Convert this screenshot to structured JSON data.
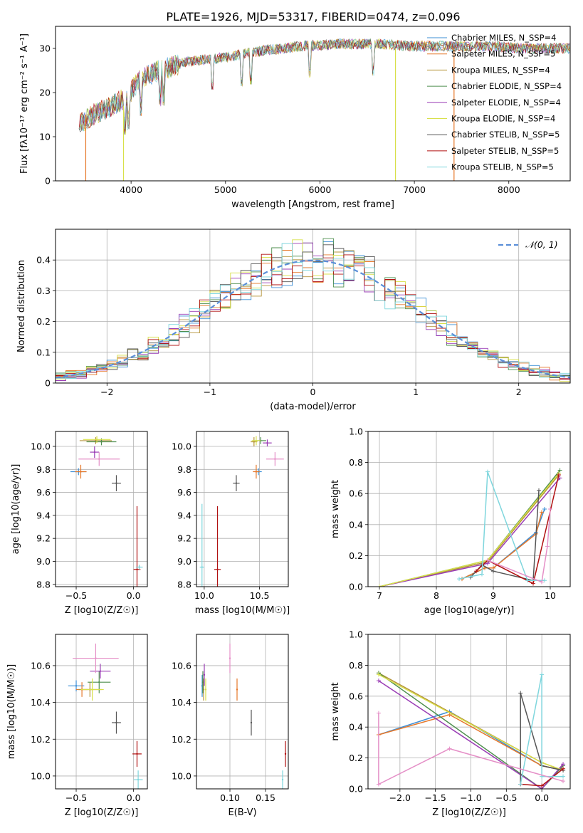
{
  "figure": {
    "title": "PLATE=1926, MJD=53317, FIBERID=0474, z=0.096"
  },
  "colors": {
    "models": [
      "#3d8fd6",
      "#e6782a",
      "#b5943a",
      "#4f8f4f",
      "#9a3db5",
      "#d8e04a",
      "#555555",
      "#b01010",
      "#7fd6dd"
    ],
    "extra": [
      "#e58fc7"
    ],
    "grid": "#b0b0b0",
    "gauss": "#5b8fd8"
  },
  "chart_data": [
    {
      "id": "spectrum",
      "type": "line",
      "xlabel": "wavelength [Angstrom, rest frame]",
      "ylabel": "Flux [fλ10⁻¹⁷ erg cm⁻² s⁻¹ A⁻¹]",
      "xlim": [
        3200,
        8650
      ],
      "ylim": [
        0,
        35
      ],
      "xticks": [
        4000,
        5000,
        6000,
        7000,
        8000
      ],
      "yticks": [
        0,
        10,
        20,
        30
      ],
      "grid": false,
      "legend_position": "upper-right",
      "legend": [
        "Chabrier MILES, N_SSP=4",
        "Salpeter MILES, N_SSP=5",
        "Kroupa MILES, N_SSP=4",
        "Chabrier ELODIE, N_SSP=4",
        "Salpeter ELODIE, N_SSP=4",
        "Kroupa ELODIE, N_SSP=4",
        "Chabrier STELIB, N_SSP=5",
        "Salpeter STELIB, N_SSP=5",
        "Kroupa STELIB, N_SSP=5"
      ],
      "continuum": {
        "x": [
          3450,
          3600,
          3800,
          3950,
          4100,
          4300,
          4600,
          5000,
          5400,
          5800,
          6200,
          6600,
          7000,
          7400,
          7800,
          8200,
          8600
        ],
        "y": [
          13,
          15,
          17,
          19,
          23,
          25,
          27,
          28,
          29.5,
          30.5,
          31,
          31,
          30.5,
          30.5,
          30.5,
          30,
          30
        ]
      },
      "dropouts": [
        {
          "x": 3520,
          "y0": 0,
          "y1": 15
        },
        {
          "x": 3920,
          "y0": 0,
          "y1": 17
        },
        {
          "x": 6800,
          "y0": 0,
          "y1": 30
        },
        {
          "x": 7420,
          "y0": 0,
          "y1": 30
        }
      ]
    },
    {
      "id": "residuals",
      "type": "step",
      "xlabel": "(data-model)/error",
      "ylabel": "Normed distribution",
      "xlim": [
        -2.5,
        2.5
      ],
      "ylim": [
        0,
        0.5
      ],
      "xticks": [
        -2,
        -1,
        0,
        1,
        2
      ],
      "yticks": [
        0,
        0.1,
        0.2,
        0.3,
        0.4
      ],
      "grid": true,
      "legend_position": "upper-right",
      "legend": [
        "𝒩(0, 1)"
      ],
      "bin_width": 0.1,
      "gaussian": {
        "mean": 0,
        "sigma": 1
      }
    },
    {
      "id": "age_vs_Z",
      "type": "errorbar",
      "xlabel": "Z [log10(Z/Z☉)]",
      "ylabel": "age  [log10(age/yr)]",
      "xlim": [
        -0.68,
        0.12
      ],
      "ylim": [
        8.78,
        10.13
      ],
      "xticks": [
        -0.5,
        0.0
      ],
      "yticks": [
        8.8,
        9.0,
        9.2,
        9.4,
        9.6,
        9.8,
        10.0
      ],
      "grid": true,
      "points": [
        {
          "x": -0.48,
          "y": 9.78,
          "xerr": 0.07,
          "yerr": 0.03
        },
        {
          "x": -0.46,
          "y": 9.78,
          "xerr": 0.05,
          "yerr": 0.06
        },
        {
          "x": -0.33,
          "y": 10.05,
          "xerr": 0.14,
          "yerr": 0.03
        },
        {
          "x": -0.28,
          "y": 10.04,
          "xerr": 0.13,
          "yerr": 0.03
        },
        {
          "x": -0.34,
          "y": 9.95,
          "xerr": 0.04,
          "yerr": 0.05
        },
        {
          "x": -0.32,
          "y": 10.06,
          "xerr": 0.12,
          "yerr": 0.03
        },
        {
          "x": -0.15,
          "y": 9.68,
          "xerr": 0.04,
          "yerr": 0.07
        },
        {
          "x": 0.03,
          "y": 8.93,
          "xerr": 0.03,
          "yerr": 0.55
        },
        {
          "x": 0.05,
          "y": 8.95,
          "xerr": 0.03,
          "yerr": 0.02
        },
        {
          "x": -0.3,
          "y": 9.89,
          "xerr": 0.18,
          "yerr": 0.06
        }
      ]
    },
    {
      "id": "age_vs_mass",
      "type": "errorbar",
      "xlabel": "mass [log10(M/M☉)]",
      "ylabel": "",
      "xlim": [
        9.93,
        10.76
      ],
      "ylim": [
        8.78,
        10.13
      ],
      "xticks": [
        10.0,
        10.5
      ],
      "yticks": [
        8.8,
        9.0,
        9.2,
        9.4,
        9.6,
        9.8,
        10.0
      ],
      "grid": true,
      "points": [
        {
          "x": 10.49,
          "y": 9.78,
          "xerr": 0.03,
          "yerr": 0.03
        },
        {
          "x": 10.47,
          "y": 9.78,
          "xerr": 0.03,
          "yerr": 0.06
        },
        {
          "x": 10.45,
          "y": 10.04,
          "xerr": 0.03,
          "yerr": 0.04
        },
        {
          "x": 10.51,
          "y": 10.05,
          "xerr": 0.05,
          "yerr": 0.03
        },
        {
          "x": 10.57,
          "y": 10.03,
          "xerr": 0.04,
          "yerr": 0.03
        },
        {
          "x": 10.47,
          "y": 10.05,
          "xerr": 0.04,
          "yerr": 0.04
        },
        {
          "x": 10.29,
          "y": 9.68,
          "xerr": 0.03,
          "yerr": 0.07
        },
        {
          "x": 10.12,
          "y": 8.93,
          "xerr": 0.03,
          "yerr": 0.55
        },
        {
          "x": 9.98,
          "y": 8.95,
          "xerr": 0.02,
          "yerr": 0.55
        },
        {
          "x": 10.64,
          "y": 9.89,
          "xerr": 0.08,
          "yerr": 0.06
        }
      ]
    },
    {
      "id": "weight_vs_age",
      "type": "line",
      "xlabel": "age  [log10(age/yr)]",
      "ylabel": "mass weight",
      "xlim": [
        6.8,
        10.35
      ],
      "ylim": [
        0,
        1
      ],
      "xticks": [
        7,
        8,
        9,
        10
      ],
      "yticks": [
        0.0,
        0.2,
        0.4,
        0.6,
        0.8,
        1.0
      ],
      "grid": true,
      "series": [
        {
          "x": [
            8.45,
            8.85,
            9.0,
            9.75,
            9.9
          ],
          "y": [
            0.05,
            0.12,
            0.12,
            0.35,
            0.5
          ]
        },
        {
          "x": [
            8.45,
            8.85,
            9.0,
            9.75,
            9.85
          ],
          "y": [
            0.05,
            0.12,
            0.12,
            0.34,
            0.48
          ]
        },
        {
          "x": [
            7.0,
            8.9,
            10.15
          ],
          "y": [
            0.0,
            0.16,
            0.72
          ]
        },
        {
          "x": [
            7.0,
            8.9,
            10.17
          ],
          "y": [
            0.0,
            0.17,
            0.75
          ]
        },
        {
          "x": [
            7.0,
            8.9,
            10.17
          ],
          "y": [
            0.0,
            0.15,
            0.7
          ]
        },
        {
          "x": [
            7.0,
            8.9,
            10.15
          ],
          "y": [
            0.0,
            0.17,
            0.73
          ]
        },
        {
          "x": [
            8.6,
            8.8,
            9.0,
            9.7,
            9.8
          ],
          "y": [
            0.06,
            0.14,
            0.1,
            0.04,
            0.62
          ]
        },
        {
          "x": [
            8.7,
            8.9,
            9.7,
            10.15
          ],
          "y": [
            0.1,
            0.17,
            0.02,
            0.72
          ]
        },
        {
          "x": [
            8.4,
            8.8,
            8.9,
            9.6,
            9.9
          ],
          "y": [
            0.05,
            0.08,
            0.74,
            0.04,
            0.04
          ]
        },
        {
          "x": [
            8.9,
            9.85,
            9.95,
            10.0
          ],
          "y": [
            0.17,
            0.03,
            0.26,
            0.5
          ]
        }
      ]
    },
    {
      "id": "mass_vs_Z",
      "type": "errorbar",
      "xlabel": "Z [log10(Z/Z☉)]",
      "ylabel": "mass [log10(M/M☉)]",
      "xlim": [
        -0.68,
        0.12
      ],
      "ylim": [
        9.93,
        10.77
      ],
      "xticks": [
        -0.5,
        0.0
      ],
      "yticks": [
        10.0,
        10.2,
        10.4,
        10.6
      ],
      "grid": true,
      "points": [
        {
          "x": -0.5,
          "y": 10.49,
          "xerr": 0.07,
          "yerr": 0.03
        },
        {
          "x": -0.45,
          "y": 10.47,
          "xerr": 0.05,
          "yerr": 0.04
        },
        {
          "x": -0.38,
          "y": 10.47,
          "xerr": 0.1,
          "yerr": 0.04
        },
        {
          "x": -0.3,
          "y": 10.51,
          "xerr": 0.1,
          "yerr": 0.06
        },
        {
          "x": -0.29,
          "y": 10.57,
          "xerr": 0.09,
          "yerr": 0.04
        },
        {
          "x": -0.36,
          "y": 10.47,
          "xerr": 0.1,
          "yerr": 0.06
        },
        {
          "x": -0.15,
          "y": 10.29,
          "xerr": 0.04,
          "yerr": 0.06
        },
        {
          "x": 0.03,
          "y": 10.12,
          "xerr": 0.04,
          "yerr": 0.07
        },
        {
          "x": 0.04,
          "y": 9.98,
          "xerr": 0.04,
          "yerr": 0.05
        },
        {
          "x": -0.33,
          "y": 10.64,
          "xerr": 0.2,
          "yerr": 0.08
        }
      ]
    },
    {
      "id": "mass_vs_EBV",
      "type": "errorbar",
      "xlabel": "E(B-V)",
      "ylabel": "",
      "xlim": [
        0.053,
        0.182
      ],
      "ylim": [
        9.93,
        10.77
      ],
      "xticks": [
        0.1,
        0.15
      ],
      "yticks": [
        10.0,
        10.2,
        10.4,
        10.6
      ],
      "grid": true,
      "points": [
        {
          "x": 0.061,
          "y": 10.49,
          "xerr": 0,
          "yerr": 0.06
        },
        {
          "x": 0.11,
          "y": 10.47,
          "xerr": 0,
          "yerr": 0.06
        },
        {
          "x": 0.063,
          "y": 10.47,
          "xerr": 0,
          "yerr": 0.06
        },
        {
          "x": 0.062,
          "y": 10.51,
          "xerr": 0,
          "yerr": 0.06
        },
        {
          "x": 0.064,
          "y": 10.55,
          "xerr": 0,
          "yerr": 0.06
        },
        {
          "x": 0.066,
          "y": 10.47,
          "xerr": 0,
          "yerr": 0.06
        },
        {
          "x": 0.13,
          "y": 10.29,
          "xerr": 0,
          "yerr": 0.07
        },
        {
          "x": 0.178,
          "y": 10.12,
          "xerr": 0,
          "yerr": 0.07
        },
        {
          "x": 0.174,
          "y": 9.98,
          "xerr": 0,
          "yerr": 0.05
        },
        {
          "x": 0.1,
          "y": 10.64,
          "xerr": 0,
          "yerr": 0.08
        }
      ]
    },
    {
      "id": "weight_vs_Z",
      "type": "line",
      "xlabel": "Z [log10(Z/Z☉)]",
      "ylabel": "mass weight",
      "xlim": [
        -2.45,
        0.4
      ],
      "ylim": [
        0,
        1
      ],
      "xticks": [
        -2.0,
        -1.5,
        -1.0,
        -0.5,
        0.0
      ],
      "yticks": [
        0.0,
        0.2,
        0.4,
        0.6,
        0.8,
        1.0
      ],
      "grid": true,
      "series": [
        {
          "x": [
            -2.3,
            -1.3,
            0.0,
            0.3
          ],
          "y": [
            0.35,
            0.5,
            0.15,
            0.12
          ]
        },
        {
          "x": [
            -2.3,
            -1.3,
            0.0,
            0.3
          ],
          "y": [
            0.35,
            0.48,
            0.15,
            0.12
          ]
        },
        {
          "x": [
            -2.3,
            0.0,
            0.3
          ],
          "y": [
            0.75,
            0.17,
            0.12
          ]
        },
        {
          "x": [
            -2.3,
            0.0,
            0.3
          ],
          "y": [
            0.75,
            0.0,
            0.15
          ]
        },
        {
          "x": [
            -2.3,
            0.0,
            0.3
          ],
          "y": [
            0.7,
            0.0,
            0.16
          ]
        },
        {
          "x": [
            -2.3,
            0.0,
            0.3
          ],
          "y": [
            0.74,
            0.17,
            0.12
          ]
        },
        {
          "x": [
            -0.3,
            -0.3,
            0.0,
            0.3
          ],
          "y": [
            0.03,
            0.62,
            0.15,
            0.12
          ]
        },
        {
          "x": [
            -0.3,
            0.0,
            0.3
          ],
          "y": [
            0.03,
            0.02,
            0.13
          ]
        },
        {
          "x": [
            -0.3,
            0.0,
            0.0,
            0.3
          ],
          "y": [
            0.03,
            0.74,
            0.08,
            0.08
          ]
        },
        {
          "x": [
            -2.3,
            -2.3,
            -1.3,
            0.3
          ],
          "y": [
            0.49,
            0.03,
            0.26,
            0.05
          ]
        }
      ]
    }
  ]
}
